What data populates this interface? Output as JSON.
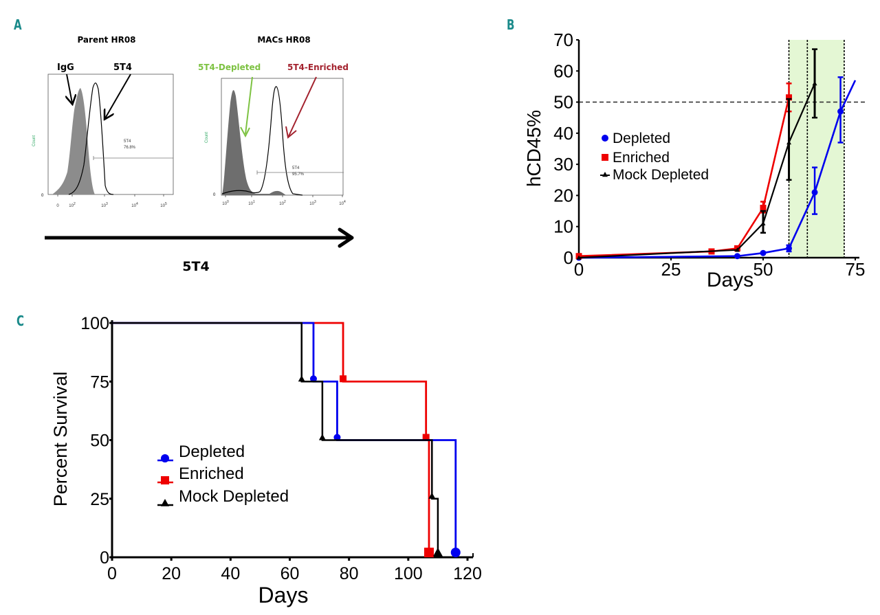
{
  "panels": {
    "a": {
      "letter": "A"
    },
    "b": {
      "letter": "B"
    },
    "c": {
      "letter": "C"
    }
  },
  "chart_data": [
    {
      "panel": "A-left",
      "type": "area",
      "title": "Parent HR08",
      "ylabel": "Count",
      "y_zero_tick": "0",
      "x_ticks": [
        "0",
        "10^2",
        "10^3",
        "10^4",
        "10^5"
      ],
      "annotations": [
        {
          "text": "IgG",
          "points_to": "isotype control (filled grey histogram)"
        },
        {
          "text": "5T4",
          "points_to": "5T4 stained (open black histogram)"
        }
      ],
      "gate": {
        "label": "5T4",
        "percent": "76.8%"
      },
      "series": [
        {
          "name": "IgG",
          "style": "filled",
          "color": "#8c8c8c",
          "peak_x_log": 2.2
        },
        {
          "name": "5T4",
          "style": "outline",
          "color": "#000000",
          "peak_x_log": 2.8
        }
      ]
    },
    {
      "panel": "A-right",
      "type": "area",
      "title": "MACs HR08",
      "ylabel": "Count",
      "y_zero_tick": "0",
      "x_ticks": [
        "10^0",
        "10^1",
        "10^2",
        "10^3",
        "10^4"
      ],
      "annotations": [
        {
          "text": "5T4-Depleted",
          "color": "#7dc242"
        },
        {
          "text": "5T4-Enriched",
          "color": "#a3222e"
        }
      ],
      "gate": {
        "label": "5T4",
        "percent": "95.7%"
      },
      "series": [
        {
          "name": "5T4-Depleted",
          "style": "filled",
          "color": "#6e6e6e",
          "peak_x_log": 0.3
        },
        {
          "name": "5T4-Enriched",
          "style": "outline",
          "color": "#000000",
          "peak_x_log": 1.8
        }
      ],
      "shared_axis_label": "5T4"
    },
    {
      "panel": "B",
      "type": "line",
      "title": "",
      "xlabel": "Days",
      "ylabel": "hCD45%",
      "xlim": [
        0,
        75
      ],
      "ylim": [
        0,
        70
      ],
      "x_ticks": [
        0,
        25,
        50,
        75
      ],
      "y_ticks": [
        0,
        10,
        20,
        30,
        40,
        50,
        60,
        70
      ],
      "grid": false,
      "legend": {
        "placement": "left-middle",
        "entries": [
          "Depleted",
          "Enriched",
          "Mock Depleted"
        ]
      },
      "reference_lines": {
        "horizontal_y": 50,
        "vertical_x": [
          57,
          62,
          72
        ]
      },
      "shaded_region": {
        "x_from": 57,
        "x_to": 72,
        "color": "#e4f7d4"
      },
      "series": [
        {
          "name": "Depleted",
          "color": "#0000ee",
          "marker": "circle",
          "x": [
            0,
            43,
            50,
            57,
            64,
            71
          ],
          "y": [
            0,
            0.5,
            1.5,
            3,
            21,
            47
          ],
          "err_low": [
            0,
            0.5,
            1.5,
            2,
            14,
            37
          ],
          "err_high": [
            0,
            0.5,
            1.5,
            4,
            29,
            58
          ],
          "extends_to": [
            75,
            57
          ]
        },
        {
          "name": "Enriched",
          "color": "#ee0000",
          "marker": "square",
          "x": [
            0,
            36,
            43,
            50,
            57
          ],
          "y": [
            0.5,
            2,
            3,
            16,
            51.5
          ],
          "err_low": [
            0.5,
            2,
            3,
            14.5,
            47
          ],
          "err_high": [
            0.5,
            2,
            3,
            18,
            56
          ]
        },
        {
          "name": "Mock Depleted",
          "color": "#000000",
          "marker": "triangle",
          "x": [
            0,
            43,
            50,
            57,
            64
          ],
          "y": [
            0,
            2.5,
            11,
            37,
            56
          ],
          "err_low": [
            0,
            2.5,
            8,
            25,
            45
          ],
          "err_high": [
            0,
            2.5,
            15,
            51,
            67
          ]
        }
      ]
    },
    {
      "panel": "C",
      "type": "line",
      "subtype": "kaplan-meier",
      "title": "",
      "xlabel": "Days",
      "ylabel": "Percent Survival",
      "xlim": [
        0,
        120
      ],
      "ylim": [
        0,
        100
      ],
      "x_ticks": [
        0,
        20,
        40,
        60,
        80,
        100,
        120
      ],
      "y_ticks": [
        0,
        25,
        50,
        75,
        100
      ],
      "grid": false,
      "legend": {
        "placement": "center-left",
        "entries": [
          "Depleted",
          "Enriched",
          "Mock Depleted"
        ]
      },
      "series": [
        {
          "name": "Depleted",
          "color": "#0000ee",
          "marker": "circle",
          "steps": [
            [
              0,
              100
            ],
            [
              68,
              75
            ],
            [
              76,
              50
            ],
            [
              116,
              0
            ]
          ]
        },
        {
          "name": "Enriched",
          "color": "#ee0000",
          "marker": "square",
          "steps": [
            [
              0,
              100
            ],
            [
              78,
              75
            ],
            [
              106,
              50
            ],
            [
              107,
              0
            ]
          ]
        },
        {
          "name": "Mock Depleted",
          "color": "#000000",
          "marker": "triangle",
          "steps": [
            [
              0,
              100
            ],
            [
              64,
              75
            ],
            [
              71,
              50
            ],
            [
              108,
              25
            ],
            [
              110,
              0
            ]
          ]
        }
      ]
    }
  ]
}
